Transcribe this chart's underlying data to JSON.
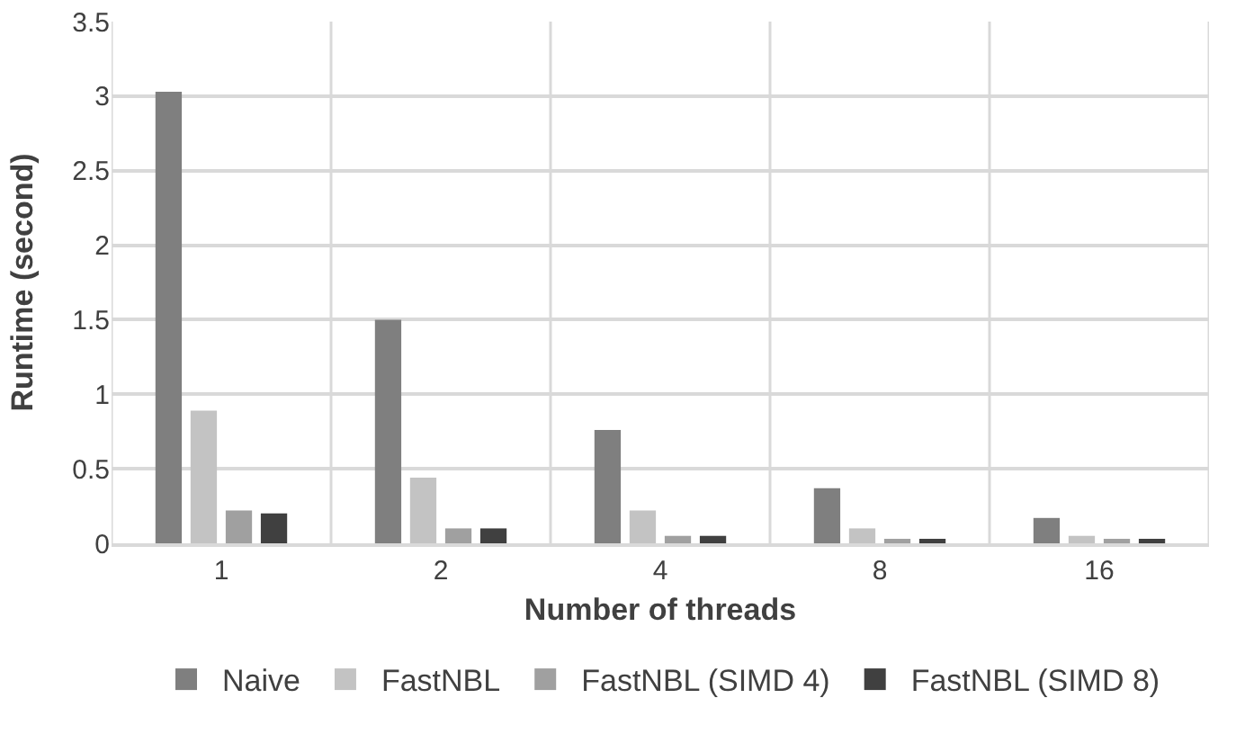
{
  "chart_data": {
    "type": "bar",
    "xlabel": "Number of threads",
    "ylabel": "Runtime (second)",
    "categories": [
      "1",
      "2",
      "4",
      "8",
      "16"
    ],
    "series": [
      {
        "name": "Naive",
        "color": "#7f7f7f",
        "values": [
          3.03,
          1.5,
          0.76,
          0.37,
          0.17
        ]
      },
      {
        "name": "FastNBL",
        "color": "#c3c3c3",
        "values": [
          0.89,
          0.44,
          0.22,
          0.1,
          0.05
        ]
      },
      {
        "name": "FastNBL (SIMD 4)",
        "color": "#a0a0a0",
        "values": [
          0.22,
          0.1,
          0.05,
          0.03,
          0.03
        ]
      },
      {
        "name": "FastNBL (SIMD 8)",
        "color": "#404040",
        "values": [
          0.2,
          0.1,
          0.05,
          0.03,
          0.03
        ]
      }
    ],
    "ylim": [
      0,
      3.5
    ],
    "yticks": [
      0,
      0.5,
      1,
      1.5,
      2,
      2.5,
      3,
      3.5
    ],
    "grid": true,
    "legend": "bottom"
  }
}
